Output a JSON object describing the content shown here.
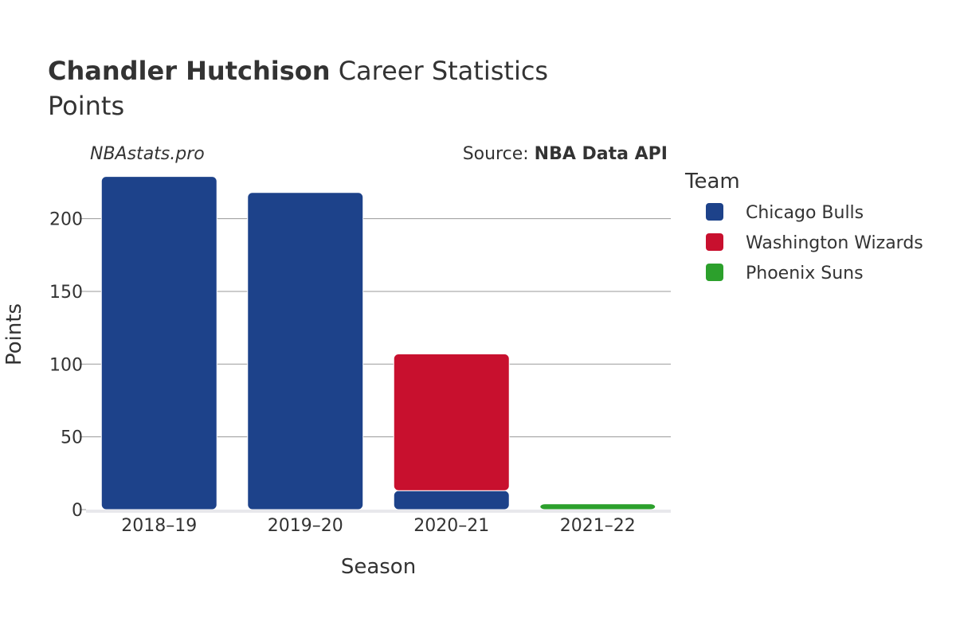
{
  "header": {
    "player_name": "Chandler Hutchison",
    "title_rest": " Career Statistics",
    "subtitle": "Points"
  },
  "watermark": "NBAstats.pro",
  "source": {
    "label": "Source: ",
    "value": "NBA Data API"
  },
  "legend": {
    "title": "Team",
    "items": [
      {
        "label": "Chicago Bulls",
        "color": "#1d428a"
      },
      {
        "label": "Washington Wizards",
        "color": "#c8102e"
      },
      {
        "label": "Phoenix Suns",
        "color": "#2ca02c"
      }
    ]
  },
  "chart_data": {
    "type": "bar",
    "stacked": true,
    "title": "Chandler Hutchison Career Statistics",
    "subtitle": "Points",
    "xlabel": "Season",
    "ylabel": "Points",
    "categories": [
      "2018–19",
      "2019–20",
      "2020–21",
      "2021–22"
    ],
    "ylim": [
      0,
      230
    ],
    "yticks": [
      0,
      50,
      100,
      150,
      200
    ],
    "grid": true,
    "legend_position": "right",
    "series": [
      {
        "name": "Chicago Bulls",
        "color": "#1d428a",
        "values": [
          229,
          218,
          13,
          0
        ]
      },
      {
        "name": "Washington Wizards",
        "color": "#c8102e",
        "values": [
          0,
          0,
          94,
          0
        ]
      },
      {
        "name": "Phoenix Suns",
        "color": "#2ca02c",
        "values": [
          0,
          0,
          0,
          4
        ]
      }
    ]
  }
}
